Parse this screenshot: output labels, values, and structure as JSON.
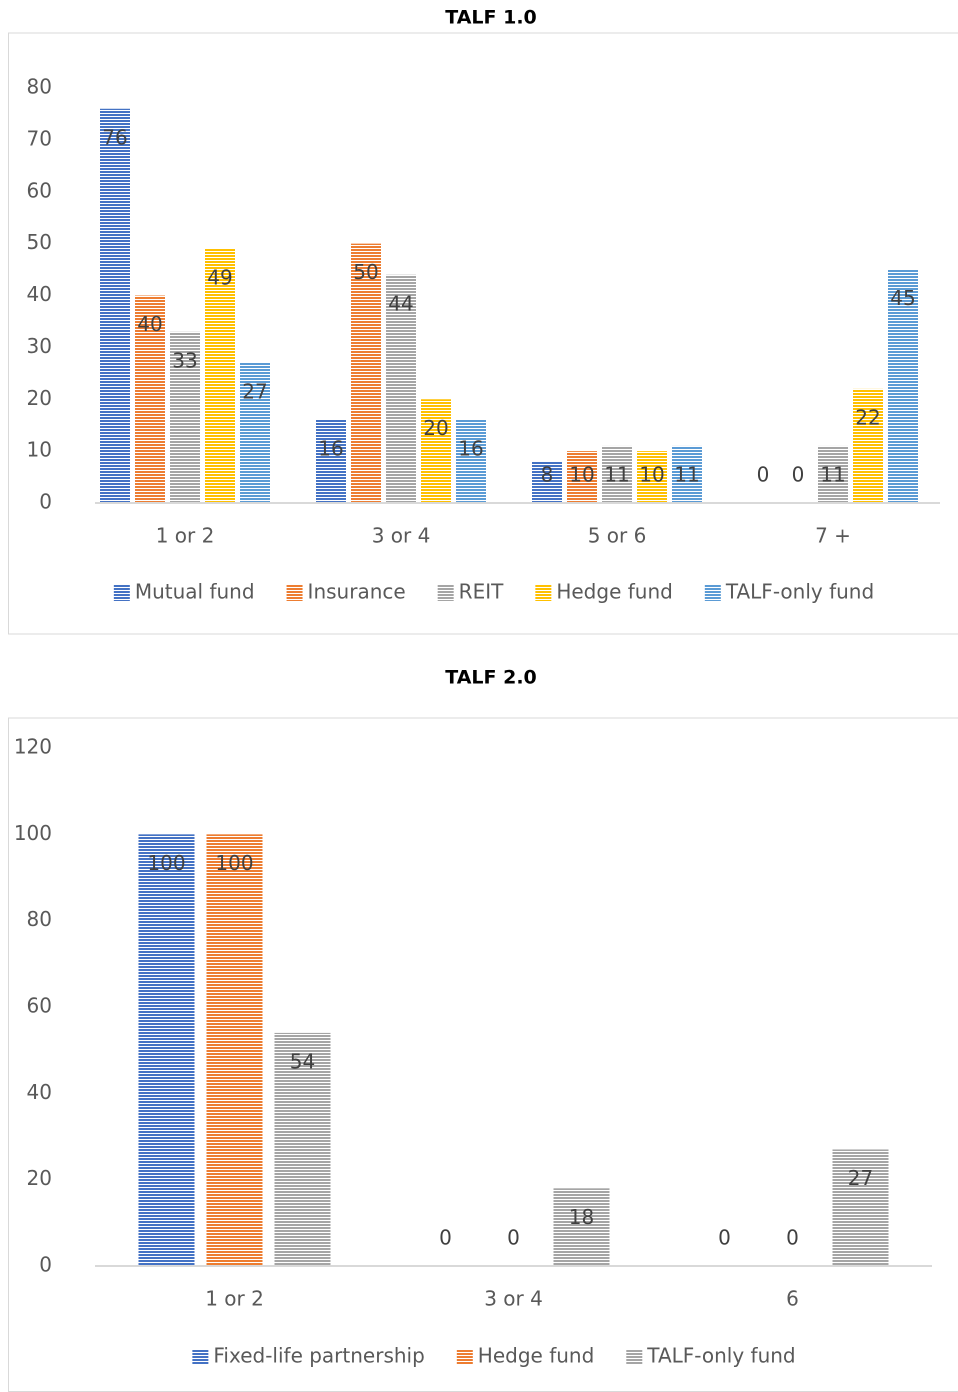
{
  "chart_data": [
    {
      "type": "bar",
      "title": "TALF 1.0",
      "categories": [
        "1 or 2",
        "3 or 4",
        "5 or 6",
        "7 +"
      ],
      "series": [
        {
          "name": "Mutual fund",
          "color": "#4472c4",
          "values": [
            76,
            16,
            8,
            0
          ]
        },
        {
          "name": "Insurance",
          "color": "#ed7d31",
          "values": [
            40,
            50,
            10,
            0
          ]
        },
        {
          "name": "REIT",
          "color": "#a5a5a5",
          "values": [
            33,
            44,
            11,
            11
          ]
        },
        {
          "name": "Hedge fund",
          "color": "#ffc000",
          "values": [
            49,
            20,
            10,
            22
          ]
        },
        {
          "name": "TALF-only fund",
          "color": "#5b9bd5",
          "values": [
            27,
            16,
            11,
            45
          ]
        }
      ],
      "ylim": [
        0,
        80
      ],
      "yticks": [
        0,
        10,
        20,
        30,
        40,
        50,
        60,
        70,
        80
      ],
      "grid": false,
      "legend": "bottom"
    },
    {
      "type": "bar",
      "title": "TALF 2.0",
      "categories": [
        "1 or 2",
        "3 or 4",
        "6"
      ],
      "series": [
        {
          "name": "Fixed-life partnership",
          "color": "#4472c4",
          "values": [
            100,
            0,
            0
          ]
        },
        {
          "name": "Hedge fund",
          "color": "#ed7d31",
          "values": [
            100,
            0,
            0
          ]
        },
        {
          "name": "TALF-only fund",
          "color": "#a5a5a5",
          "values": [
            54,
            18,
            27
          ]
        }
      ],
      "ylim": [
        0,
        120
      ],
      "yticks": [
        0,
        20,
        40,
        60,
        80,
        100,
        120
      ],
      "grid": false,
      "legend": "bottom"
    }
  ]
}
